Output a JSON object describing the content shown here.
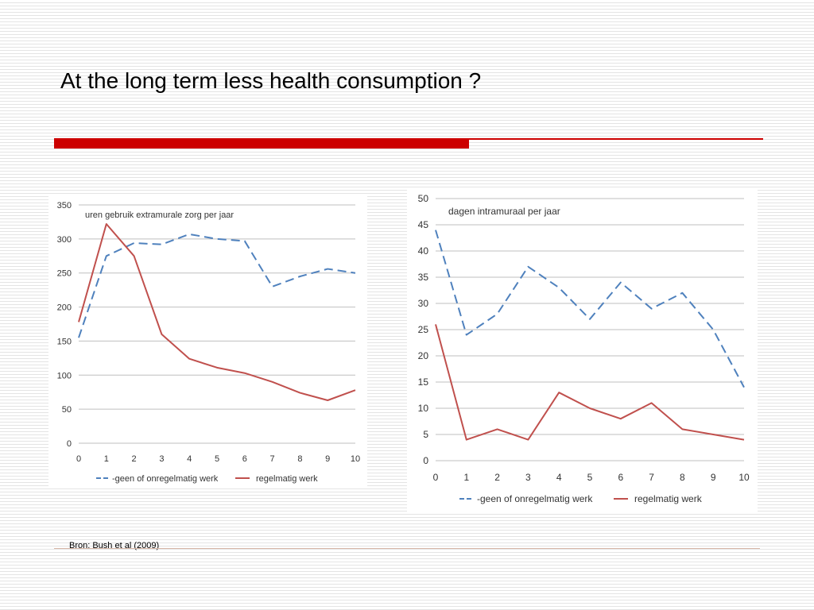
{
  "slide": {
    "title": "At the long term less health consumption ?",
    "source": "Bron: Bush et al (2009)"
  },
  "colors": {
    "accent_bar": "#cc0000",
    "series_geen": "#4f81bd",
    "series_regelmatig": "#c0504d",
    "gridline": "#bfbfbf"
  },
  "chart_data": [
    {
      "type": "line",
      "title": "uren gebruik extramurale  zorg per jaar",
      "x": [
        0,
        1,
        2,
        3,
        4,
        5,
        6,
        7,
        8,
        9,
        10
      ],
      "ylim": [
        0,
        350
      ],
      "yticks": [
        0,
        50,
        100,
        150,
        200,
        250,
        300,
        350
      ],
      "grid": true,
      "legend": "bottom",
      "series": [
        {
          "name": "geen of onregelmatig werk",
          "style": "dashed",
          "color": "#4f81bd",
          "values": [
            155,
            275,
            294,
            292,
            307,
            300,
            297,
            230,
            245,
            256,
            250
          ]
        },
        {
          "name": "regelmatig werk",
          "style": "solid",
          "color": "#c0504d",
          "values": [
            178,
            322,
            275,
            160,
            124,
            111,
            103,
            90,
            74,
            63,
            78
          ]
        }
      ]
    },
    {
      "type": "line",
      "title": "dagen intramuraal  per jaar",
      "x": [
        0,
        1,
        2,
        3,
        4,
        5,
        6,
        7,
        8,
        9,
        10
      ],
      "ylim": [
        0,
        50
      ],
      "yticks": [
        0,
        5,
        10,
        15,
        20,
        25,
        30,
        35,
        40,
        45,
        50
      ],
      "grid": true,
      "legend": "bottom",
      "series": [
        {
          "name": "geen of onregelmatig werk",
          "style": "dashed",
          "color": "#4f81bd",
          "values": [
            44,
            24,
            28,
            37,
            33,
            27,
            34,
            29,
            32,
            25,
            14
          ]
        },
        {
          "name": "regelmatig werk",
          "style": "solid",
          "color": "#c0504d",
          "values": [
            26,
            4,
            6,
            4,
            13,
            10,
            8,
            11,
            6,
            5,
            4
          ]
        }
      ]
    }
  ]
}
